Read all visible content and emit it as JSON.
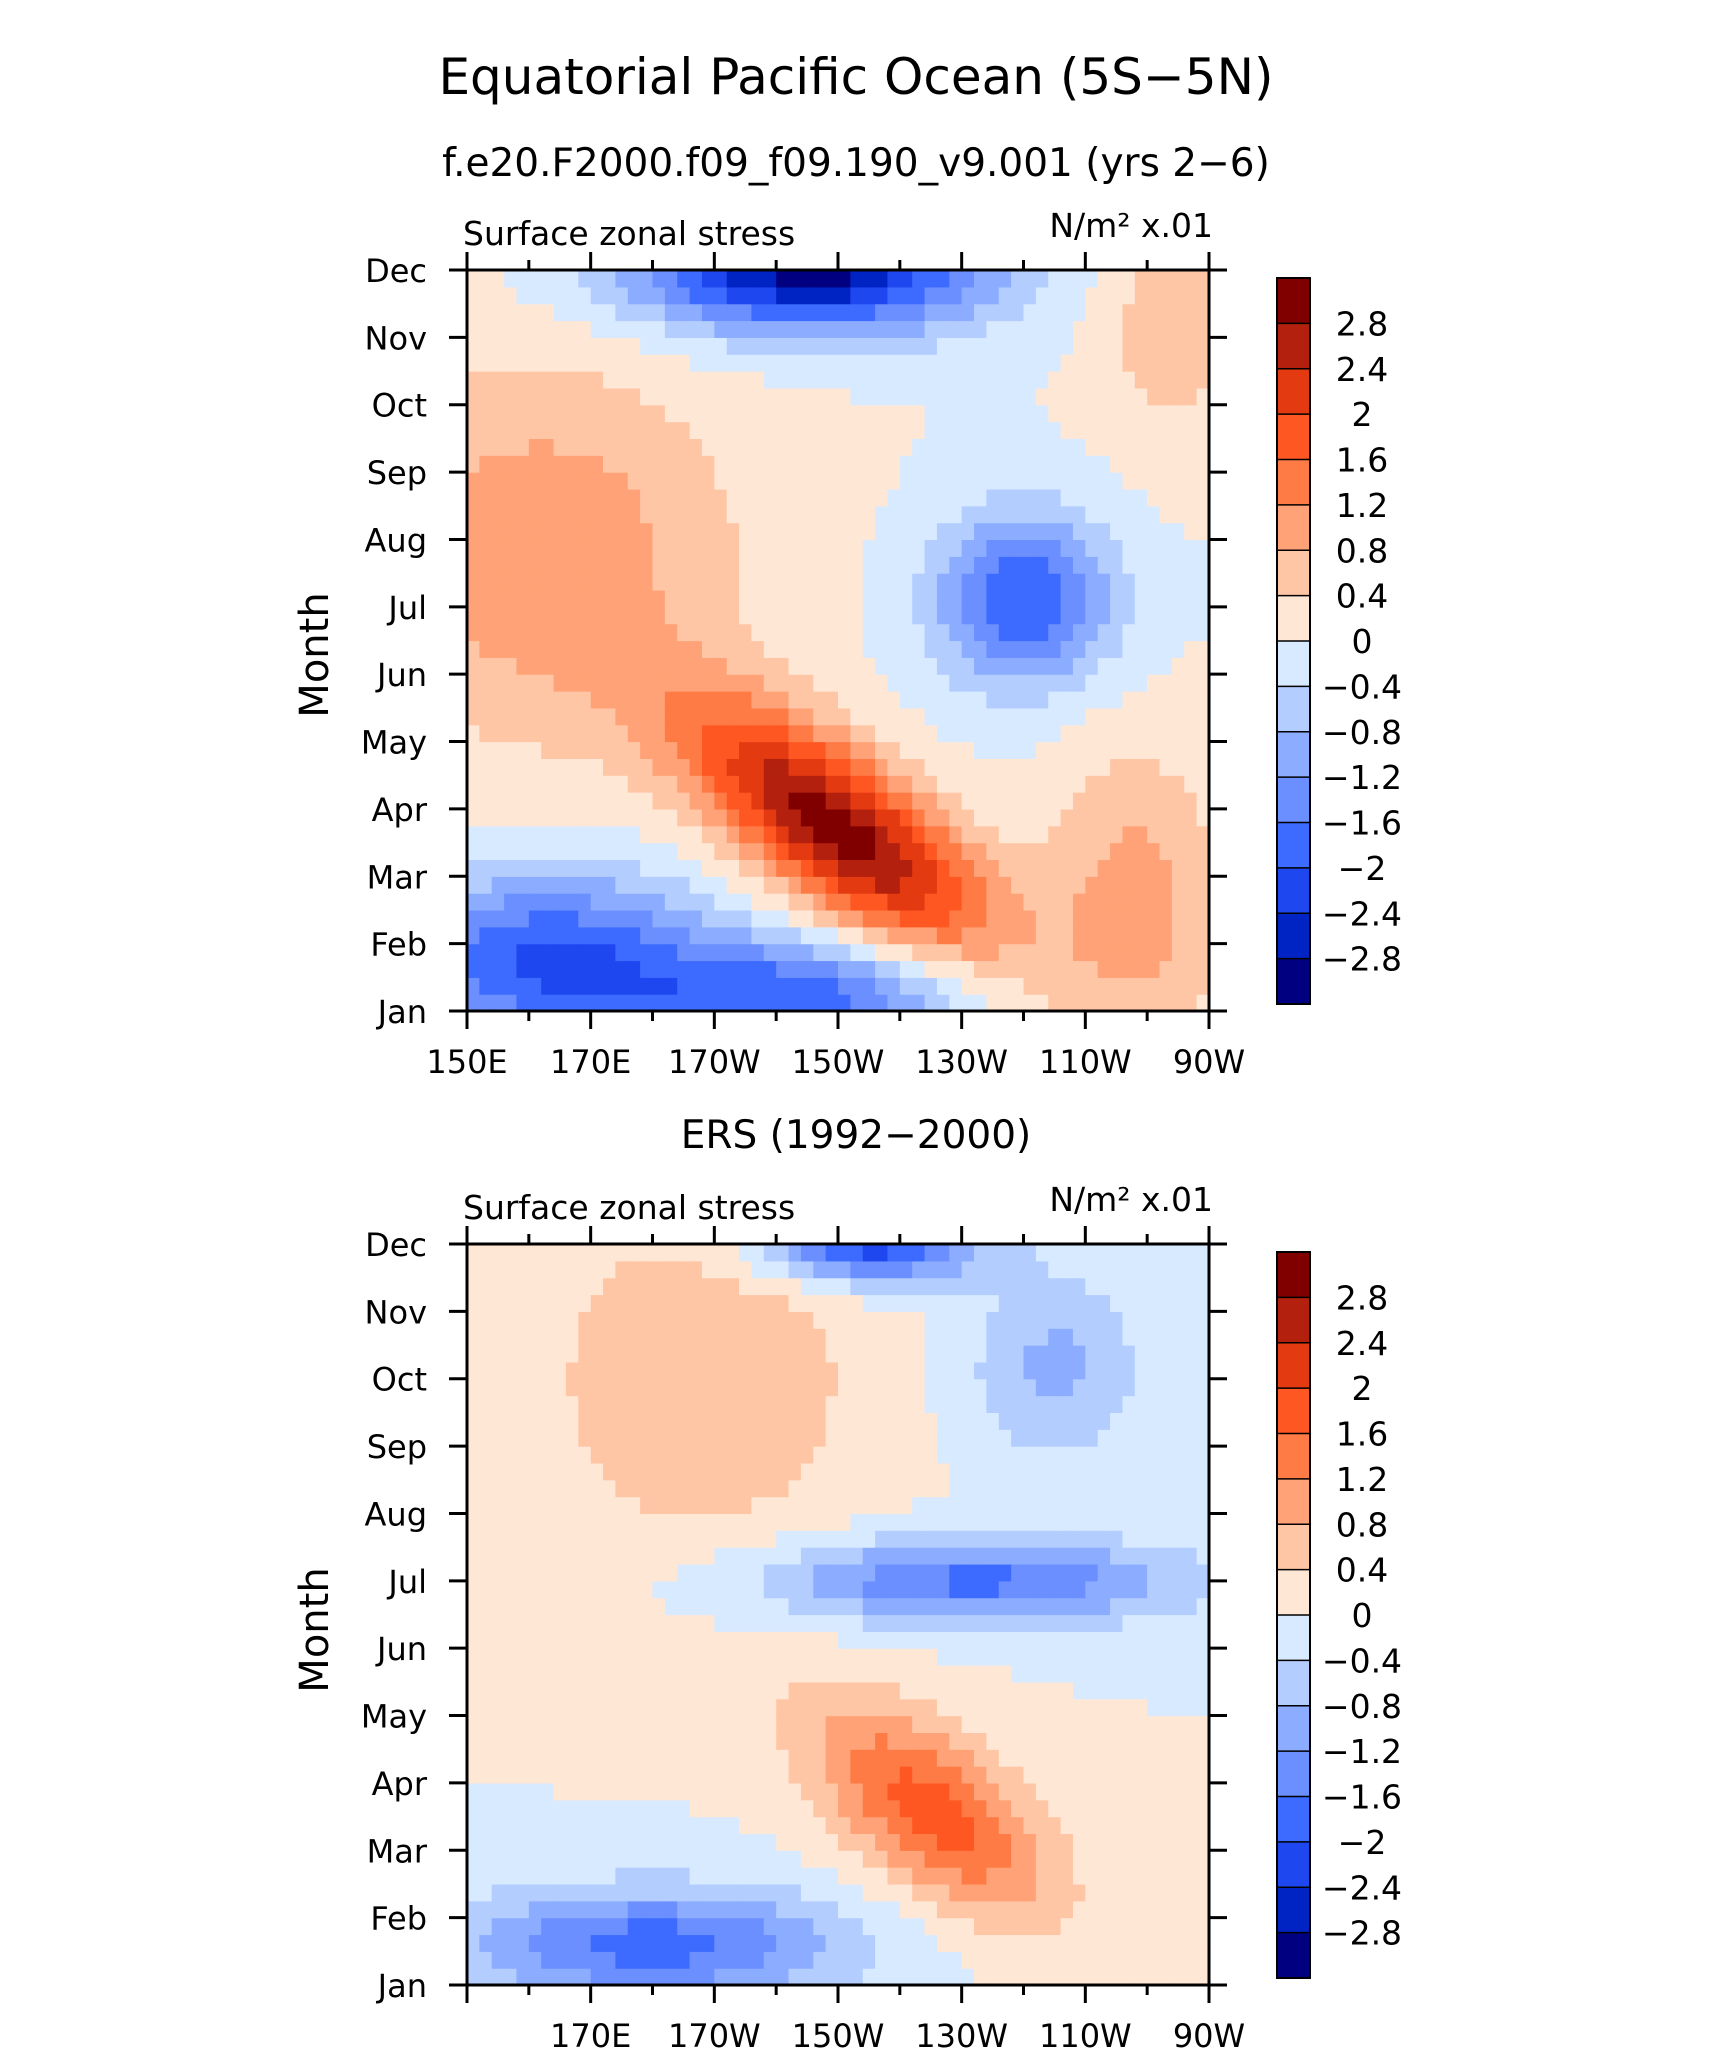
{
  "title": "Equatorial Pacific Ocean (5S−5N)",
  "colorbar": {
    "labels": [
      "2.8",
      "2.4",
      "2",
      "1.6",
      "1.2",
      "0.8",
      "0.4",
      "0",
      "−0.4",
      "−0.8",
      "−1.2",
      "−1.6",
      "−2",
      "−2.4",
      "−2.8"
    ],
    "colors": [
      "#800000",
      "#b3200e",
      "#e33a11",
      "#ff5722",
      "#ff7b45",
      "#ffa277",
      "#ffc6a6",
      "#ffe7d6",
      "#d8eaff",
      "#b3cdff",
      "#8cadff",
      "#6b8fff",
      "#3d6bff",
      "#1f47f0",
      "#0023c4",
      "#000080"
    ]
  },
  "chart_data": [
    {
      "type": "heatmap",
      "subtitle": "f.e20.F2000.f09_f09.190_v9.001 (yrs 2−6)",
      "variable_label": "Surface zonal stress",
      "units_label": "N/m² x.01",
      "ylabel": "Month",
      "y_ticks": [
        "Jan",
        "Feb",
        "Mar",
        "Apr",
        "May",
        "Jun",
        "Jul",
        "Aug",
        "Sep",
        "Oct",
        "Nov",
        "Dec"
      ],
      "x_ticks": [
        "150E",
        "170E",
        "170W",
        "150W",
        "130W",
        "110W",
        "90W"
      ],
      "x_tick_lon": [
        150,
        170,
        190,
        210,
        230,
        250,
        270
      ],
      "xlim": [
        150,
        270
      ],
      "ylim": [
        1,
        12
      ],
      "features": [
        {
          "lon": 210,
          "month": 3.7,
          "value": 3.0,
          "sx": 18,
          "sy": 0.9,
          "rot": -0.055
        },
        {
          "lon": 240,
          "month": 7.1,
          "value": -2.0,
          "sx": 10,
          "sy": 0.9
        },
        {
          "lon": 205,
          "month": 12.0,
          "value": -3.0,
          "sx": 20,
          "sy": 0.65
        },
        {
          "lon": 163,
          "month": 1.8,
          "value": -2.0,
          "sx": 18,
          "sy": 0.9
        },
        {
          "lon": 203,
          "month": 1.2,
          "value": -1.8,
          "sx": 20,
          "sy": 0.6
        },
        {
          "lon": 162,
          "month": 7.8,
          "value": 1.1,
          "sx": 22,
          "sy": 2.0
        },
        {
          "lon": 264,
          "month": 11.3,
          "value": 0.7,
          "sx": 8,
          "sy": 1.3
        },
        {
          "lon": 258,
          "month": 2.6,
          "value": 1.0,
          "sx": 10,
          "sy": 1.6
        }
      ]
    },
    {
      "type": "heatmap",
      "subtitle": "ERS (1992−2000)",
      "variable_label": "Surface zonal stress",
      "units_label": "N/m² x.01",
      "ylabel": "Month",
      "y_ticks": [
        "Jan",
        "Feb",
        "Mar",
        "Apr",
        "May",
        "Jun",
        "Jul",
        "Aug",
        "Sep",
        "Oct",
        "Nov",
        "Dec"
      ],
      "x_ticks": [
        "170E",
        "170W",
        "150W",
        "130W",
        "110W",
        "90W"
      ],
      "x_tick_lon": [
        170,
        190,
        210,
        230,
        250,
        270
      ],
      "xlim": [
        150,
        270
      ],
      "ylim": [
        1,
        12
      ],
      "features": [
        {
          "lon": 225,
          "month": 3.6,
          "value": 1.8,
          "sx": 14,
          "sy": 0.9,
          "rot": -0.05
        },
        {
          "lon": 232,
          "month": 7.0,
          "value": -1.7,
          "sx": 24,
          "sy": 0.45
        },
        {
          "lon": 215,
          "month": 12.0,
          "value": -2.3,
          "sx": 12,
          "sy": 0.4
        },
        {
          "lon": 180,
          "month": 1.6,
          "value": -1.8,
          "sx": 22,
          "sy": 0.6
        },
        {
          "lon": 188,
          "month": 10.0,
          "value": 0.8,
          "sx": 18,
          "sy": 1.8
        },
        {
          "lon": 245,
          "month": 10.2,
          "value": -0.9,
          "sx": 10,
          "sy": 1.0
        }
      ]
    }
  ]
}
